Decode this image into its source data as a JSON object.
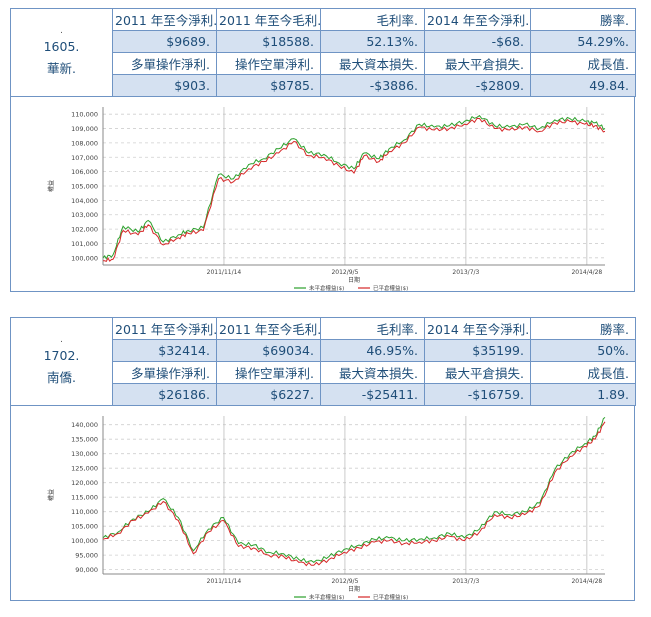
{
  "strategies": [
    {
      "mark": ".",
      "code": "1605.",
      "name": "華新.",
      "row1": [
        "2011 年至今淨利.",
        "2011 年至今毛利.",
        "毛利率.",
        "2014 年至今淨利.",
        "勝率."
      ],
      "row2": [
        "$9689.",
        "$18588.",
        "52.13%.",
        "-$68.",
        "54.29%."
      ],
      "row3": [
        "多單操作淨利.",
        "操作空單淨利.",
        "最大資本損失.",
        "最大平倉損失.",
        "成長值."
      ],
      "row4": [
        "$903.",
        "$8785.",
        "-$3886.",
        "-$2809.",
        "49.84."
      ],
      "chart_data": {
        "type": "line",
        "yticks": [
          "110,000",
          "109,000",
          "108,000",
          "107,000",
          "106,000",
          "105,000",
          "104,000",
          "103,000",
          "102,000",
          "101,000",
          "100,000"
        ],
        "ylim": [
          99500,
          110500
        ],
        "xticks": [
          "2011/11/14",
          "2012/9/5",
          "2013/7/3",
          "2014/4/28"
        ],
        "ylabel": "權益",
        "xlabel": "日期",
        "legend": [
          "未平倉權益($)",
          "已平倉權益($)"
        ],
        "series": [
          {
            "name": "未平倉權益($)",
            "color": "#2ca02c",
            "x": [
              0,
              0.02,
              0.04,
              0.07,
              0.09,
              0.12,
              0.15,
              0.17,
              0.2,
              0.23,
              0.26,
              0.29,
              0.32,
              0.35,
              0.38,
              0.41,
              0.44,
              0.47,
              0.5,
              0.52,
              0.55,
              0.57,
              0.6,
              0.63,
              0.66,
              0.69,
              0.72,
              0.75,
              0.78,
              0.81,
              0.84,
              0.87,
              0.9,
              0.93,
              0.96,
              0.98,
              1.0
            ],
            "values": [
              100000,
              100200,
              102200,
              101800,
              102600,
              101100,
              101600,
              101900,
              102100,
              105800,
              105500,
              106500,
              106900,
              107600,
              108300,
              107300,
              107200,
              106600,
              106200,
              107300,
              106900,
              107600,
              108200,
              109300,
              109100,
              109200,
              109500,
              109900,
              109200,
              109100,
              109300,
              109000,
              109600,
              109700,
              109500,
              109400,
              109000
            ]
          },
          {
            "name": "已平倉權益($)",
            "color": "#d62728",
            "x": [
              0,
              0.02,
              0.04,
              0.07,
              0.09,
              0.12,
              0.15,
              0.17,
              0.2,
              0.23,
              0.26,
              0.29,
              0.32,
              0.35,
              0.38,
              0.41,
              0.44,
              0.47,
              0.5,
              0.52,
              0.55,
              0.57,
              0.6,
              0.63,
              0.66,
              0.69,
              0.72,
              0.75,
              0.78,
              0.81,
              0.84,
              0.87,
              0.9,
              0.93,
              0.96,
              0.98,
              1.0
            ],
            "values": [
              99800,
              99900,
              101900,
              101600,
              102300,
              100900,
              101400,
              101700,
              101900,
              105500,
              105300,
              106200,
              106700,
              107300,
              108100,
              107100,
              107000,
              106400,
              105900,
              107100,
              106700,
              107400,
              108000,
              109100,
              108900,
              109000,
              109300,
              109700,
              109000,
              108900,
              109100,
              108800,
              109400,
              109500,
              109300,
              109200,
              108800
            ]
          }
        ]
      }
    },
    {
      "mark": ".",
      "code": "1702.",
      "name": "南僑.",
      "row1": [
        "2011 年至今淨利.",
        "2011 年至今毛利.",
        "毛利率.",
        "2014 年至今淨利.",
        "勝率."
      ],
      "row2": [
        "$32414.",
        "$69034.",
        "46.95%.",
        "$35199.",
        "50%."
      ],
      "row3": [
        "多單操作淨利.",
        "操作空單淨利.",
        "最大資本損失.",
        "最大平倉損失.",
        "成長值."
      ],
      "row4": [
        "$26186.",
        "$6227.",
        "-$25411.",
        "-$16759.",
        "1.89."
      ],
      "chart_data": {
        "type": "line",
        "yticks": [
          "140,000",
          "135,000",
          "130,000",
          "125,000",
          "120,000",
          "115,000",
          "110,000",
          "105,000",
          "100,000",
          "95,000",
          "90,000"
        ],
        "ylim": [
          88500,
          143000
        ],
        "xticks": [
          "2011/11/14",
          "2012/9/5",
          "2013/7/3",
          "2014/4/28"
        ],
        "ylabel": "權益",
        "xlabel": "日期",
        "legend": [
          "未平倉權益($)",
          "已平倉權益($)"
        ],
        "series": [
          {
            "name": "未平倉權益($)",
            "color": "#2ca02c",
            "x": [
              0,
              0.03,
              0.06,
              0.09,
              0.12,
              0.15,
              0.18,
              0.21,
              0.24,
              0.27,
              0.3,
              0.33,
              0.36,
              0.39,
              0.42,
              0.45,
              0.48,
              0.51,
              0.54,
              0.57,
              0.6,
              0.63,
              0.66,
              0.69,
              0.72,
              0.75,
              0.78,
              0.81,
              0.84,
              0.87,
              0.9,
              0.93,
              0.96,
              0.98,
              1.0
            ],
            "values": [
              101000,
              103000,
              107500,
              110000,
              114500,
              108000,
              96500,
              104000,
              108000,
              99000,
              98500,
              96000,
              95500,
              93500,
              92500,
              94500,
              97000,
              98500,
              100500,
              101000,
              100000,
              100500,
              101000,
              102500,
              101000,
              104000,
              110000,
              109000,
              110000,
              113000,
              124500,
              130000,
              133500,
              136000,
              142500
            ]
          },
          {
            "name": "已平倉權益($)",
            "color": "#d62728",
            "x": [
              0,
              0.03,
              0.06,
              0.09,
              0.12,
              0.15,
              0.18,
              0.21,
              0.24,
              0.27,
              0.3,
              0.33,
              0.36,
              0.39,
              0.42,
              0.45,
              0.48,
              0.51,
              0.54,
              0.57,
              0.6,
              0.63,
              0.66,
              0.69,
              0.72,
              0.75,
              0.78,
              0.81,
              0.84,
              0.87,
              0.9,
              0.93,
              0.96,
              0.98,
              1.0
            ],
            "values": [
              100500,
              102500,
              107000,
              109500,
              113500,
              107000,
              95500,
              103000,
              107000,
              98000,
              97500,
              95000,
              94500,
              92500,
              91500,
              93500,
              96000,
              97500,
              99500,
              100000,
              99000,
              99500,
              100000,
              101500,
              100000,
              103000,
              109000,
              108000,
              109000,
              112000,
              123500,
              129000,
              132500,
              135000,
              141000
            ]
          }
        ]
      }
    }
  ]
}
